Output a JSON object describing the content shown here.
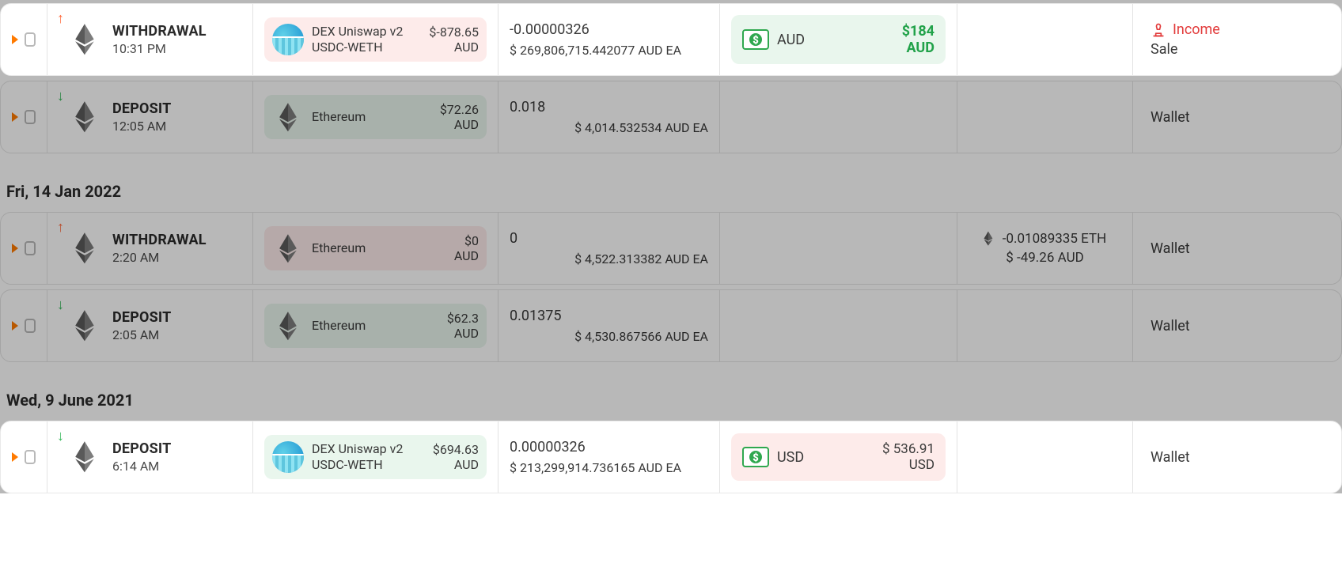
{
  "colors": {
    "accent_orange": "#ff7a00",
    "arrow_up": "#ff6a3d",
    "arrow_down": "#35b85a",
    "pill_red_bg": "#fdebea",
    "pill_green_bg": "#e9f6ed",
    "income_red": "#e23b3b",
    "amount_green": "#22a24a",
    "border": "#e3e3e3",
    "text": "#3a3a3a"
  },
  "rows": [
    {
      "highlight": true,
      "direction": "up",
      "type_label": "WITHDRAWAL",
      "time": "10:31 PM",
      "asset": {
        "icon": "uniswap",
        "name": "DEX Uniswap v2 USDC-WETH",
        "amount": "$-878.65",
        "amount_unit": "AUD",
        "tone": "red"
      },
      "qty": {
        "line1": "-0.00000326",
        "line2": "$ 269,806,715.442077 AUD EA",
        "align": "left"
      },
      "currency": {
        "tone": "green",
        "code": "AUD",
        "amount": "$184",
        "amount_unit": "AUD"
      },
      "fee": null,
      "tag": {
        "type": "income_sale",
        "line1": "Income",
        "line2": "Sale"
      }
    },
    {
      "highlight": false,
      "direction": "down",
      "type_label": "DEPOSIT",
      "time": "12:05 AM",
      "asset": {
        "icon": "eth",
        "name": "Ethereum",
        "amount": "$72.26",
        "amount_unit": "AUD",
        "tone": "green"
      },
      "qty": {
        "line1": "0.018",
        "line2": "$ 4,014.532534 AUD EA",
        "align": "right"
      },
      "currency": null,
      "fee": null,
      "tag": {
        "type": "wallet",
        "line1": "Wallet"
      }
    }
  ],
  "groups": [
    {
      "date": "Fri, 14 Jan 2022",
      "rows": [
        {
          "highlight": false,
          "direction": "up",
          "type_label": "WITHDRAWAL",
          "time": "2:20 AM",
          "asset": {
            "icon": "eth",
            "name": "Ethereum",
            "amount": "$0",
            "amount_unit": "AUD",
            "tone": "red"
          },
          "qty": {
            "line1": "0",
            "line2": "$ 4,522.313382 AUD EA",
            "align": "right"
          },
          "currency": null,
          "fee": {
            "line1": "-0.01089335 ETH",
            "line2": "$ -49.26 AUD",
            "icon": "eth"
          },
          "tag": {
            "type": "wallet",
            "line1": "Wallet"
          }
        },
        {
          "highlight": false,
          "direction": "down",
          "type_label": "DEPOSIT",
          "time": "2:05 AM",
          "asset": {
            "icon": "eth",
            "name": "Ethereum",
            "amount": "$62.3",
            "amount_unit": "AUD",
            "tone": "green"
          },
          "qty": {
            "line1": "0.01375",
            "line2": "$ 4,530.867566 AUD EA",
            "align": "right"
          },
          "currency": null,
          "fee": null,
          "tag": {
            "type": "wallet",
            "line1": "Wallet"
          }
        }
      ]
    },
    {
      "date": "Wed, 9 June 2021",
      "rows": [
        {
          "highlight": true,
          "direction": "down",
          "type_label": "DEPOSIT",
          "time": "6:14 AM",
          "asset": {
            "icon": "uniswap",
            "name": "DEX Uniswap v2 USDC-WETH",
            "amount": "$694.63",
            "amount_unit": "AUD",
            "tone": "green"
          },
          "qty": {
            "line1": "0.00000326",
            "line2": "$ 213,299,914.736165 AUD EA",
            "align": "left"
          },
          "currency": {
            "tone": "red",
            "code": "USD",
            "amount": "$ 536.91",
            "amount_unit": "USD"
          },
          "fee": null,
          "tag": {
            "type": "wallet",
            "line1": "Wallet"
          }
        }
      ]
    }
  ]
}
